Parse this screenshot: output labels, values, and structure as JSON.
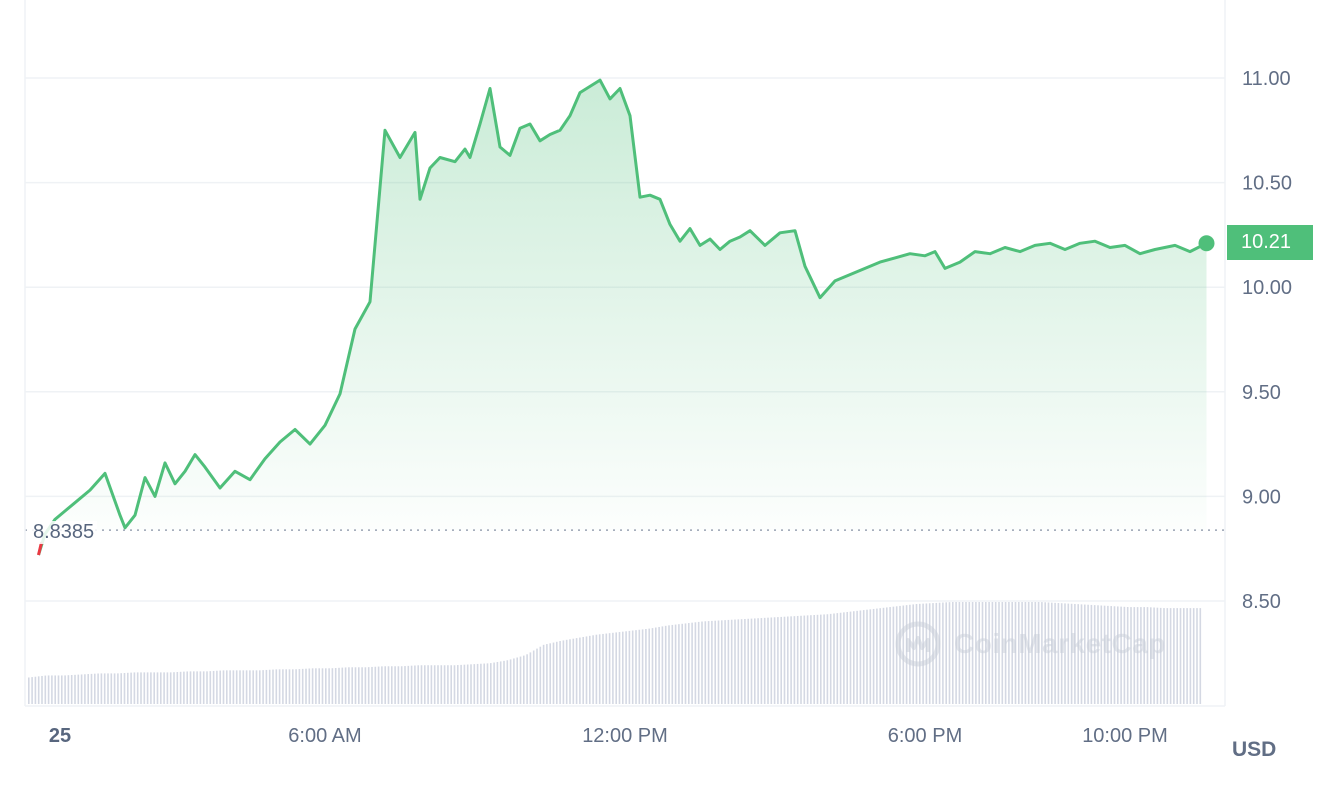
{
  "chart_data": {
    "type": "area",
    "currency": "USD",
    "current_price": "10.21",
    "reference_price": "8.8385",
    "ylim": [
      8.1,
      11.35
    ],
    "yticks": [
      "11.00",
      "10.50",
      "10.00",
      "9.50",
      "9.00",
      "8.50"
    ],
    "ytick_values": [
      11.0,
      10.5,
      10.0,
      9.5,
      9.0,
      8.5
    ],
    "xticks": [
      "25",
      "6:00 AM",
      "12:00 PM",
      "6:00 PM",
      "10:00 PM"
    ],
    "xtick_hours": [
      0,
      6,
      12,
      18,
      22
    ],
    "x_range_hours": [
      0.27,
      23.63
    ],
    "series": [
      {
        "x_hours": [
          0.27,
          0.4,
          0.6,
          0.8,
          1.0,
          1.3,
          1.6,
          1.9,
          2.0,
          2.2,
          2.4,
          2.6,
          2.8,
          3.0,
          3.2,
          3.4,
          3.6,
          3.9,
          4.2,
          4.5,
          4.8,
          5.1,
          5.4,
          5.7,
          6.0,
          6.3,
          6.6,
          6.9,
          7.2,
          7.5,
          7.8,
          7.9,
          8.1,
          8.3,
          8.6,
          8.8,
          8.9,
          9.1,
          9.3,
          9.5,
          9.7,
          9.9,
          10.1,
          10.3,
          10.5,
          10.7,
          10.9,
          11.1,
          11.3,
          11.5,
          11.7,
          11.9,
          12.1,
          12.3,
          12.5,
          12.7,
          12.9,
          13.1,
          13.3,
          13.5,
          13.7,
          13.9,
          14.1,
          14.3,
          14.5,
          14.8,
          15.1,
          15.4,
          15.6,
          15.9,
          16.2,
          16.5,
          16.8,
          17.1,
          17.4,
          17.7,
          18.0,
          18.2,
          18.4,
          18.7,
          19.0,
          19.3,
          19.6,
          19.9,
          20.2,
          20.5,
          20.8,
          21.1,
          21.4,
          21.7,
          22.0,
          22.3,
          22.6,
          23.0,
          23.3,
          23.63
        ],
        "y": [
          8.72,
          8.82,
          8.89,
          8.93,
          8.97,
          9.03,
          9.11,
          8.91,
          8.85,
          8.91,
          9.09,
          9.0,
          9.16,
          9.06,
          9.12,
          9.2,
          9.14,
          9.04,
          9.12,
          9.08,
          9.18,
          9.26,
          9.32,
          9.25,
          9.34,
          9.49,
          9.8,
          9.93,
          10.75,
          10.62,
          10.74,
          10.42,
          10.57,
          10.62,
          10.6,
          10.66,
          10.62,
          10.78,
          10.95,
          10.67,
          10.63,
          10.76,
          10.78,
          10.7,
          10.73,
          10.75,
          10.82,
          10.93,
          10.96,
          10.99,
          10.9,
          10.95,
          10.82,
          10.43,
          10.44,
          10.42,
          10.3,
          10.22,
          10.28,
          10.2,
          10.23,
          10.18,
          10.22,
          10.24,
          10.27,
          10.2,
          10.26,
          10.27,
          10.1,
          9.95,
          10.03,
          10.06,
          10.09,
          10.12,
          10.14,
          10.16,
          10.15,
          10.17,
          10.09,
          10.12,
          10.17,
          10.16,
          10.19,
          10.17,
          10.2,
          10.21,
          10.18,
          10.21,
          10.22,
          10.19,
          10.2,
          10.16,
          10.18,
          10.2,
          10.17,
          10.21
        ]
      }
    ],
    "volume": {
      "relative_levels": [
        0.26,
        0.28,
        0.28,
        0.29,
        0.3,
        0.3,
        0.31,
        0.31,
        0.31,
        0.32,
        0.32,
        0.33,
        0.33,
        0.33,
        0.34,
        0.34,
        0.35,
        0.35,
        0.36,
        0.36,
        0.37,
        0.37,
        0.38,
        0.38,
        0.38,
        0.39,
        0.4,
        0.43,
        0.48,
        0.58,
        0.62,
        0.65,
        0.68,
        0.7,
        0.72,
        0.74,
        0.77,
        0.79,
        0.81,
        0.82,
        0.83,
        0.84,
        0.85,
        0.86,
        0.87,
        0.88,
        0.9,
        0.92,
        0.94,
        0.96,
        0.98,
        0.99,
        1.0,
        1.0,
        1.0,
        1.0,
        1.0,
        1.0,
        0.99,
        0.98,
        0.97,
        0.96,
        0.95,
        0.95,
        0.94,
        0.94,
        0.94
      ]
    },
    "grid": true,
    "watermark": "CoinMarketCap"
  }
}
